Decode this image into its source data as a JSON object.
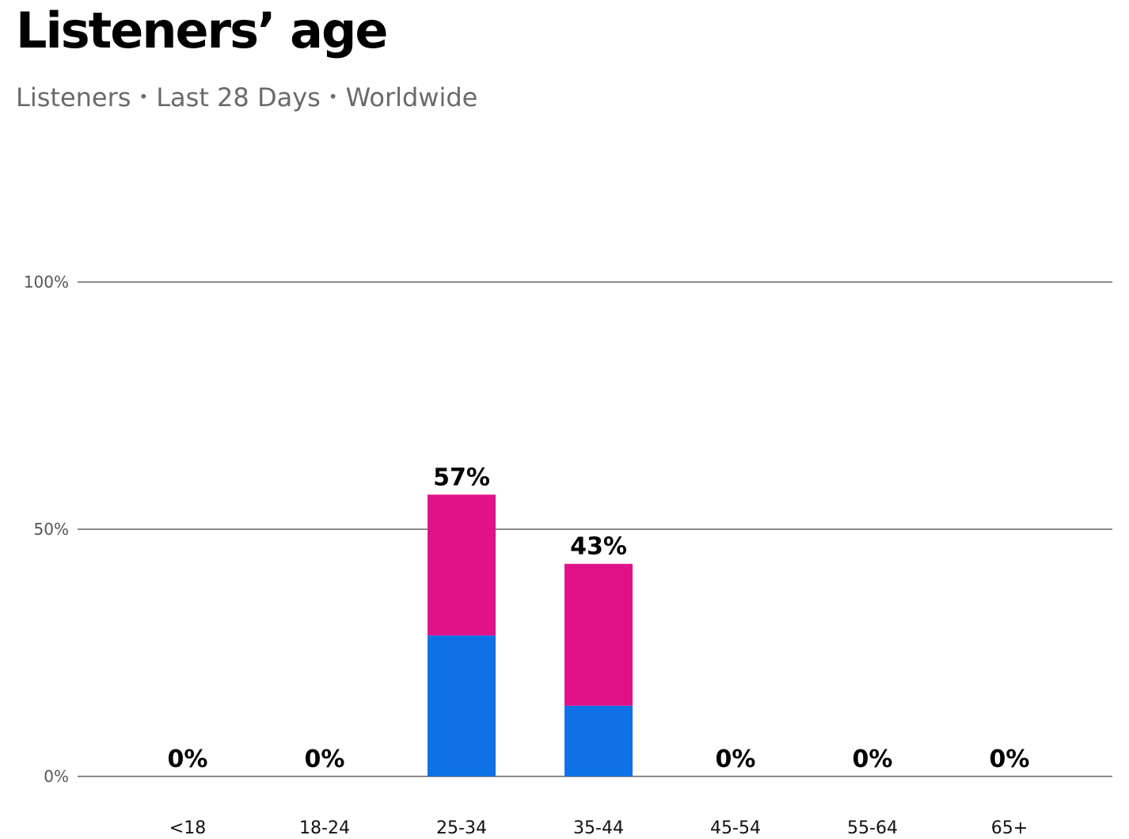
{
  "header": {
    "title": "Listeners’ age",
    "subtitle_parts": [
      "Listeners",
      "Last 28 Days",
      "Worldwide"
    ],
    "separator": "•"
  },
  "chart_data": {
    "type": "bar",
    "stacked": true,
    "title": "Listeners’ age",
    "subtitle": "Listeners • Last 28 Days • Worldwide",
    "categories": [
      "<18",
      "18-24",
      "25-34",
      "35-44",
      "45-54",
      "55-64",
      "65+"
    ],
    "series": [
      {
        "color": "#0e72e6",
        "values": [
          0,
          0,
          28.5,
          14.3,
          0,
          0,
          0
        ]
      },
      {
        "color": "#e0128a",
        "values": [
          0,
          0,
          28.5,
          28.7,
          0,
          0,
          0
        ]
      }
    ],
    "totals": [
      0,
      0,
      57,
      43,
      0,
      0,
      0
    ],
    "total_labels": [
      "0%",
      "0%",
      "57%",
      "43%",
      "0%",
      "0%",
      "0%"
    ],
    "yticks": [
      {
        "value": 0,
        "label": "0%"
      },
      {
        "value": 50,
        "label": "50%"
      },
      {
        "value": 100,
        "label": "100%"
      }
    ],
    "ylim": [
      0,
      100
    ],
    "grid": true,
    "gridline_color": "#8a8a8a",
    "xlabel": "",
    "ylabel": ""
  }
}
